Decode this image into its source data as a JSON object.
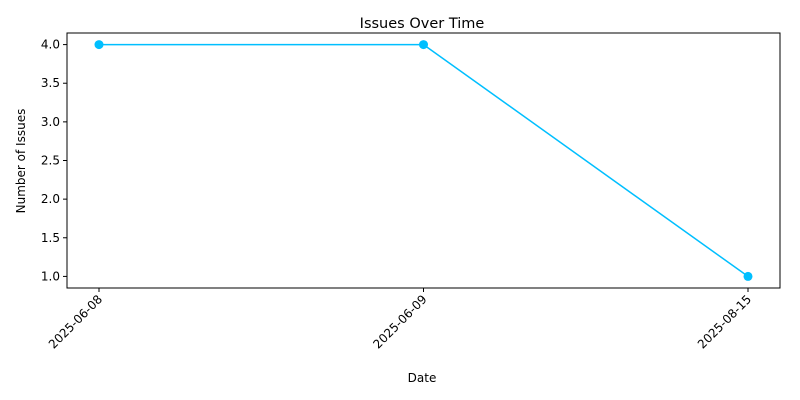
{
  "chart_data": {
    "type": "line",
    "title": "Issues Over Time",
    "xlabel": "Date",
    "ylabel": "Number of Issues",
    "categories": [
      "2025-06-08",
      "2025-06-09",
      "2025-08-15"
    ],
    "series": [
      {
        "values": [
          4,
          4,
          1
        ],
        "color": "#00bfff",
        "marker": "circle"
      }
    ],
    "yticks": [
      "1.0",
      "1.5",
      "2.0",
      "2.5",
      "3.0",
      "3.5",
      "4.0"
    ],
    "ylim": [
      0.85,
      4.15
    ],
    "grid": false,
    "legend": "none"
  }
}
